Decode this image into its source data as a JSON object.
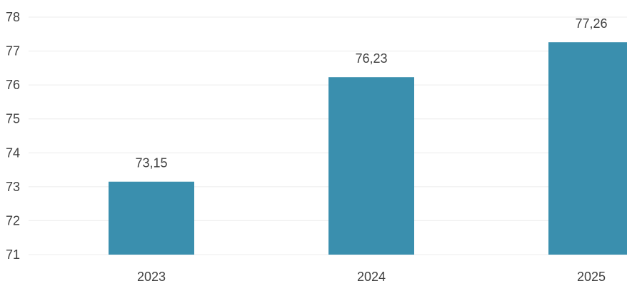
{
  "chart_data": {
    "type": "bar",
    "categories": [
      "2023",
      "2024",
      "2025"
    ],
    "values": [
      73.15,
      76.23,
      77.26
    ],
    "value_labels": [
      "73,15",
      "76,23",
      "77,26"
    ],
    "title": "",
    "xlabel": "",
    "ylabel": "",
    "ylim": [
      71,
      78
    ],
    "yticks": [
      71,
      72,
      73,
      74,
      75,
      76,
      77,
      78
    ],
    "grid": true,
    "legend": "none",
    "bar_color": "#3a8fae"
  }
}
